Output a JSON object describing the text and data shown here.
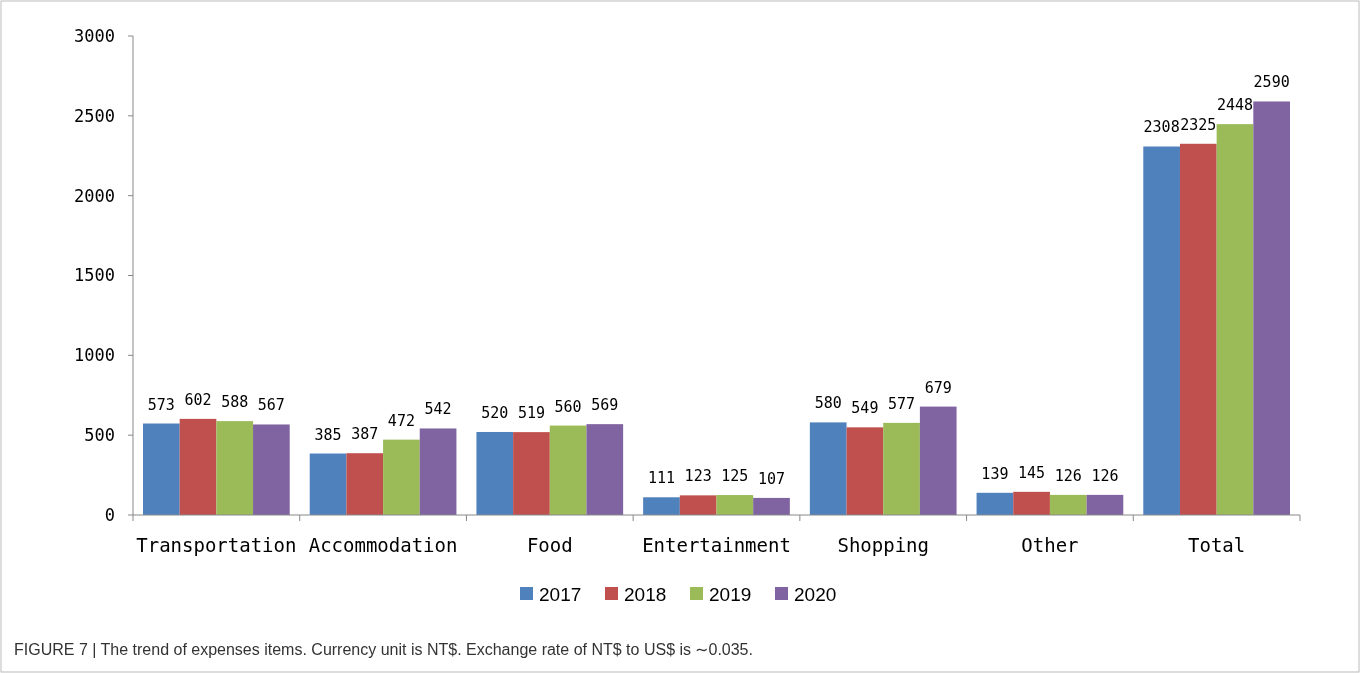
{
  "chart_data": {
    "type": "bar",
    "categories": [
      "Transportation",
      "Accommodation",
      "Food",
      "Entertainment",
      "Shopping",
      "Other",
      "Total"
    ],
    "series": [
      {
        "name": "2017",
        "color": "#4f81bd",
        "values": [
          573,
          385,
          520,
          111,
          580,
          139,
          2308
        ]
      },
      {
        "name": "2018",
        "color": "#c0504d",
        "values": [
          602,
          387,
          519,
          123,
          549,
          145,
          2325
        ]
      },
      {
        "name": "2019",
        "color": "#9bbb59",
        "values": [
          588,
          472,
          560,
          125,
          577,
          126,
          2448
        ]
      },
      {
        "name": "2020",
        "color": "#8064a2",
        "values": [
          567,
          542,
          569,
          107,
          679,
          126,
          2590
        ]
      }
    ],
    "ylim": [
      0,
      3000
    ],
    "yticks": [
      0,
      500,
      1000,
      1500,
      2000,
      2500,
      3000
    ],
    "grid": false,
    "legend": "bottom",
    "data_labels": true,
    "annotations": [
      "FIGURE 7 | The trend of expenses items. Currency unit is NT$. Exchange rate of NT$ to US$ is ∼0.035."
    ]
  }
}
